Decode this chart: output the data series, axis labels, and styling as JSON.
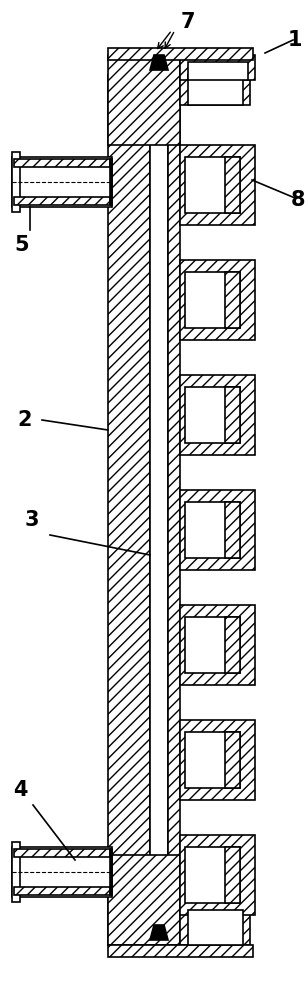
{
  "bg_color": "#ffffff",
  "lc": "#000000",
  "lw": 1.2,
  "fig_w": 3.08,
  "fig_h": 10.0,
  "hatch_density": "///",
  "label_fs": 15
}
